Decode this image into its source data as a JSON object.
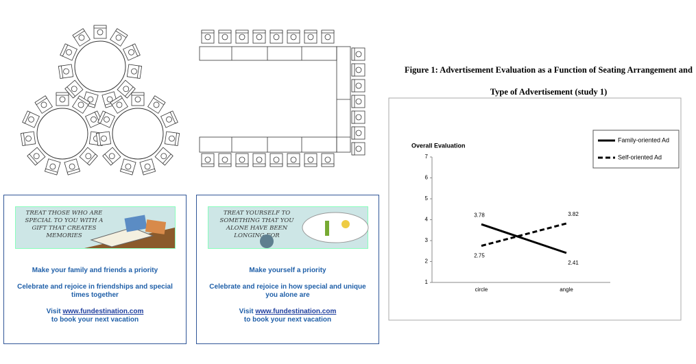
{
  "chart_data": {
    "type": "line",
    "title": "Figure 1: Advertisement Evaluation as a Function of Seating Arrangement and Type of Advertisement (study 1)",
    "y_label": "Overall Evaluation",
    "categories": [
      "circle",
      "angle"
    ],
    "series": [
      {
        "name": "Family-oriented Ad",
        "color": "#000000",
        "dash": "solid",
        "values": [
          3.78,
          2.41
        ]
      },
      {
        "name": "Self-oriented Ad",
        "color": "#000000",
        "dash": "dashed",
        "values": [
          2.75,
          3.82
        ]
      }
    ],
    "ylim": [
      1,
      7
    ],
    "yticks": [
      1,
      2,
      3,
      4,
      5,
      6,
      7
    ],
    "grid": false,
    "legend": "upper right"
  },
  "ads": [
    {
      "banner": "TREAT THOSE WHO ARE SPECIAL TO YOU WITH A GIFT THAT CREATES MEMORIES",
      "headline": "Make your family and friends a priority",
      "body": "Celebrate and rejoice in friendships and special times together",
      "visit": "Visit",
      "url": "www.fundestination.com",
      "closing": "to book your next vacation"
    },
    {
      "banner": "TREAT YOURSELF TO SOMETHING THAT YOU ALONE HAVE BEEN LONGING FOR",
      "headline": "Make yourself a priority",
      "body": "Celebrate and rejoice in how special and unique you alone are",
      "visit": "Visit",
      "url": "www.fundestination.com",
      "closing": "to book your next vacation"
    }
  ]
}
